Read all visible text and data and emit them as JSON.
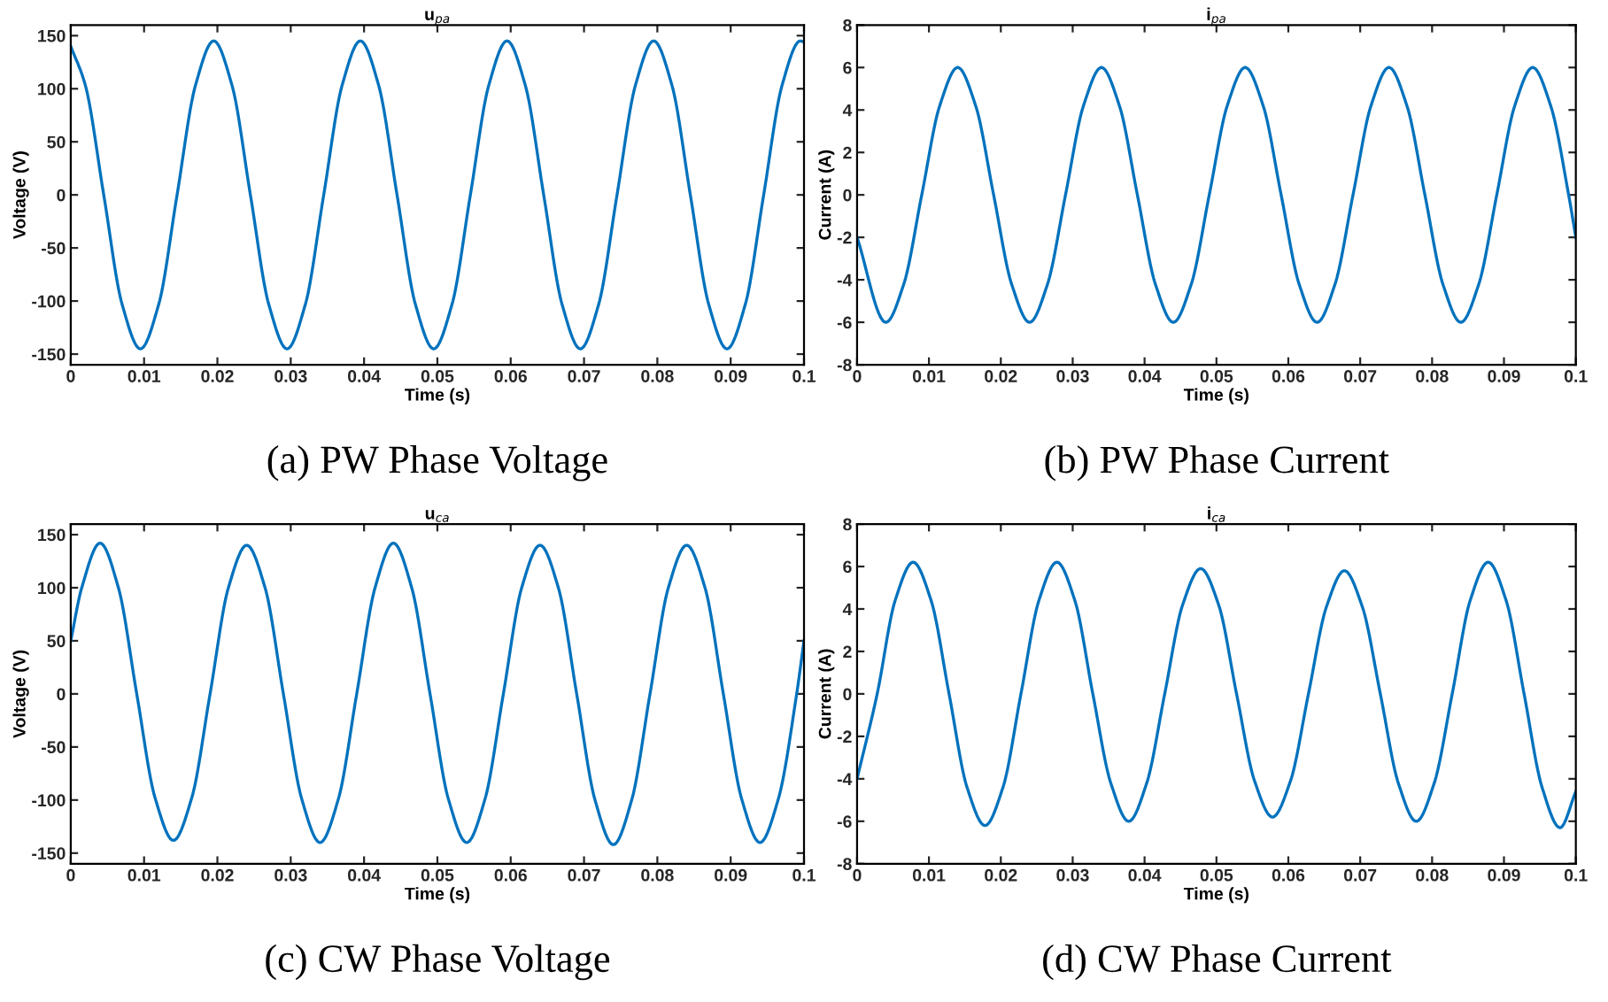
{
  "chart_data": [
    {
      "type": "line",
      "title": "u$_{pa}$",
      "xlabel": "Time (s)",
      "ylabel": "Voltage (V)",
      "color": "#0072bd",
      "line_style": "solid",
      "marker": "none",
      "x": [
        0,
        0.002,
        0.0045,
        0.007,
        0.0095,
        0.012,
        0.0145,
        0.017,
        0.0195,
        0.022,
        0.0245,
        0.027,
        0.0295,
        0.032,
        0.0345,
        0.037,
        0.0395,
        0.042,
        0.0445,
        0.047,
        0.0495,
        0.052,
        0.0545,
        0.057,
        0.0595,
        0.062,
        0.0645,
        0.067,
        0.0695,
        0.072,
        0.0745,
        0.077,
        0.0795,
        0.082,
        0.0845,
        0.087,
        0.0895,
        0.092,
        0.0945,
        0.097,
        0.0995,
        0.1
      ],
      "values": [
        140,
        103,
        0,
        -103,
        -145,
        -103,
        0,
        103,
        145,
        103,
        0,
        -103,
        -145,
        -103,
        0,
        103,
        145,
        103,
        0,
        -103,
        -145,
        -103,
        0,
        103,
        145,
        103,
        0,
        -103,
        -145,
        -103,
        0,
        103,
        145,
        103,
        0,
        -103,
        -145,
        -103,
        0,
        103,
        145,
        144
      ],
      "xlim": [
        0,
        0.1
      ],
      "ylim": [
        -160,
        160
      ],
      "xticks": [
        0,
        0.01,
        0.02,
        0.03,
        0.04,
        0.05,
        0.06,
        0.07,
        0.08,
        0.09,
        0.1
      ],
      "yticks": [
        -150,
        -100,
        -50,
        0,
        50,
        100,
        150
      ],
      "annotations": [
        "(a) PW Phase Voltage"
      ]
    },
    {
      "type": "line",
      "title": "i$_{pa}$",
      "xlabel": "Time (s)",
      "ylabel": "Current (A)",
      "color": "#0072bd",
      "line_style": "solid",
      "marker": "none",
      "x": [
        0,
        0.004,
        0.0065,
        0.009,
        0.0115,
        0.014,
        0.0165,
        0.019,
        0.0215,
        0.024,
        0.0265,
        0.029,
        0.0315,
        0.034,
        0.0365,
        0.039,
        0.0415,
        0.044,
        0.0465,
        0.049,
        0.0515,
        0.054,
        0.0565,
        0.059,
        0.0615,
        0.064,
        0.0665,
        0.069,
        0.0715,
        0.074,
        0.0765,
        0.079,
        0.0815,
        0.084,
        0.0865,
        0.089,
        0.0915,
        0.094,
        0.0965,
        0.099,
        0.1
      ],
      "values": [
        -2,
        -6,
        -4.2,
        0,
        4.2,
        6,
        4.2,
        0,
        -4.2,
        -6,
        -4.2,
        0,
        4.2,
        6,
        4.2,
        0,
        -4.2,
        -6,
        -4.2,
        0,
        4.2,
        6,
        4.2,
        0,
        -4.2,
        -6,
        -4.2,
        0,
        4.2,
        6,
        4.2,
        0,
        -4.2,
        -6,
        -4.2,
        0,
        4.2,
        6,
        4.2,
        0,
        -2
      ],
      "xlim": [
        0,
        0.1
      ],
      "ylim": [
        -8,
        8
      ],
      "xticks": [
        0,
        0.01,
        0.02,
        0.03,
        0.04,
        0.05,
        0.06,
        0.07,
        0.08,
        0.09,
        0.1
      ],
      "yticks": [
        -8,
        -6,
        -4,
        -2,
        0,
        2,
        4,
        6,
        8
      ],
      "annotations": [
        "(b) PW Phase Current"
      ]
    },
    {
      "type": "line",
      "title": "u$_{ca}$",
      "xlabel": "Time (s)",
      "ylabel": "Voltage (V)",
      "color": "#0072bd",
      "line_style": "solid",
      "marker": "none",
      "x": [
        0,
        0.0015,
        0.004,
        0.0065,
        0.009,
        0.0115,
        0.014,
        0.0165,
        0.019,
        0.0215,
        0.024,
        0.0265,
        0.029,
        0.0315,
        0.034,
        0.0365,
        0.039,
        0.0415,
        0.044,
        0.0465,
        0.049,
        0.0515,
        0.054,
        0.0565,
        0.059,
        0.0615,
        0.064,
        0.0665,
        0.069,
        0.0715,
        0.074,
        0.0765,
        0.079,
        0.0815,
        0.084,
        0.0865,
        0.089,
        0.0915,
        0.094,
        0.0965,
        0.099,
        0.1
      ],
      "values": [
        50,
        100,
        142,
        100,
        0,
        -98,
        -138,
        -98,
        0,
        100,
        140,
        100,
        0,
        -99,
        -140,
        -99,
        0,
        100,
        142,
        100,
        0,
        -99,
        -140,
        -99,
        0,
        100,
        140,
        100,
        0,
        -100,
        -142,
        -100,
        0,
        100,
        140,
        100,
        0,
        -99,
        -140,
        -99,
        0,
        50
      ],
      "xlim": [
        0,
        0.1
      ],
      "ylim": [
        -160,
        160
      ],
      "xticks": [
        0,
        0.01,
        0.02,
        0.03,
        0.04,
        0.05,
        0.06,
        0.07,
        0.08,
        0.09,
        0.1
      ],
      "yticks": [
        -150,
        -100,
        -50,
        0,
        50,
        100,
        150
      ],
      "annotations": [
        "(c) CW Phase Voltage"
      ]
    },
    {
      "type": "line",
      "title": "i$_{ca}$",
      "xlabel": "Time (s)",
      "ylabel": "Current (A)",
      "color": "#0072bd",
      "line_style": "solid",
      "marker": "none",
      "x": [
        0,
        0.0028,
        0.0053,
        0.0078,
        0.0103,
        0.0128,
        0.0153,
        0.0178,
        0.0203,
        0.0228,
        0.0253,
        0.0278,
        0.0303,
        0.0328,
        0.0353,
        0.0378,
        0.0403,
        0.0428,
        0.0453,
        0.0478,
        0.0503,
        0.0528,
        0.0553,
        0.0578,
        0.0603,
        0.0628,
        0.0653,
        0.0678,
        0.0703,
        0.0728,
        0.0753,
        0.0778,
        0.0803,
        0.0828,
        0.0853,
        0.0878,
        0.0903,
        0.0928,
        0.0953,
        0.0978,
        0.1
      ],
      "values": [
        -4,
        0,
        4.4,
        6.2,
        4.4,
        0,
        -4.4,
        -6.2,
        -4.4,
        0,
        4.4,
        6.2,
        4.4,
        0,
        -4.2,
        -6,
        -4.2,
        0,
        4.2,
        5.9,
        4.2,
        0,
        -4.1,
        -5.8,
        -4.1,
        0,
        4.1,
        5.8,
        4.1,
        0,
        -4.2,
        -6,
        -4.2,
        0,
        4.4,
        6.2,
        4.4,
        0,
        -4.4,
        -6.3,
        -4.6
      ],
      "xlim": [
        0,
        0.1
      ],
      "ylim": [
        -8,
        8
      ],
      "xticks": [
        0,
        0.01,
        0.02,
        0.03,
        0.04,
        0.05,
        0.06,
        0.07,
        0.08,
        0.09,
        0.1
      ],
      "yticks": [
        -8,
        -6,
        -4,
        -2,
        0,
        2,
        4,
        6,
        8
      ],
      "annotations": [
        "(d) CW Phase Current"
      ]
    }
  ]
}
